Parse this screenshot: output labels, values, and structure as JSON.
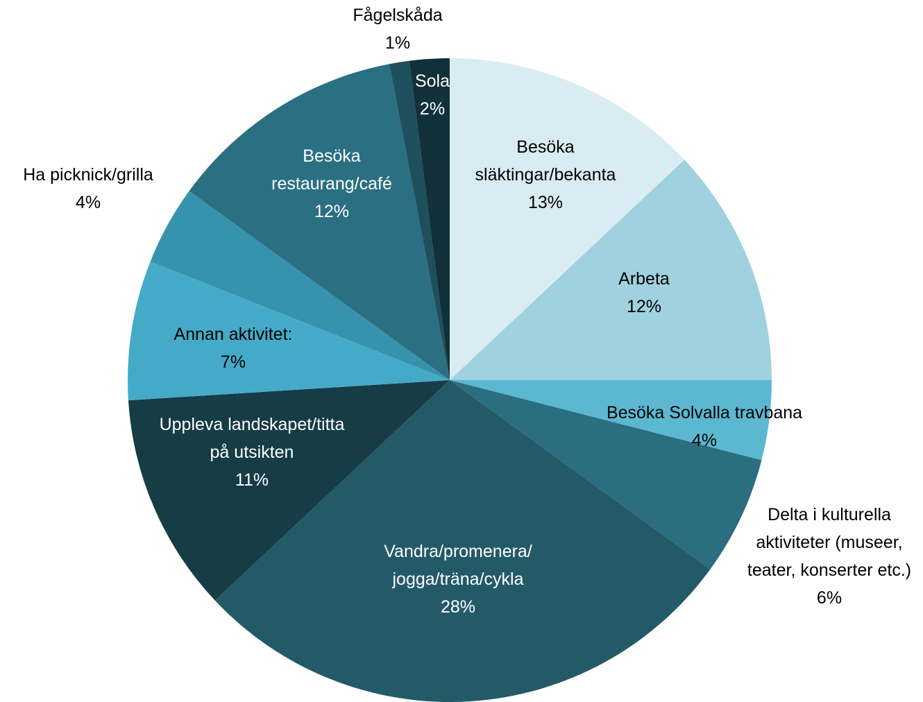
{
  "chart_data": {
    "type": "pie",
    "categories": [
      "Besöka släktingar/bekanta",
      "Arbeta",
      "Besöka Solvalla travbana",
      "Delta i kulturella aktiviteter (museer, teater, konserter etc.)",
      "Vandra/promenera/ jogga/träna/cykla",
      "Uppleva landskapet/titta på utsikten",
      "Annan aktivitet:",
      "Ha picknick/grilla",
      "Besöka restaurang/café",
      "Fågelskåda",
      "Sola"
    ],
    "values": [
      13,
      12,
      4,
      6,
      28,
      11,
      7,
      4,
      12,
      1,
      2
    ],
    "value_labels": [
      "13%",
      "12%",
      "4%",
      "6%",
      "28%",
      "11%",
      "7%",
      "4%",
      "12%",
      "1%",
      "2%"
    ],
    "colors": [
      "#d9ecf2",
      "#9fd1de",
      "#5bb8d0",
      "#2a6e80",
      "#245a68",
      "#163c46",
      "#45aac8",
      "#3793ad",
      "#2b6f82",
      "#1f4f5c",
      "#10303a"
    ]
  }
}
